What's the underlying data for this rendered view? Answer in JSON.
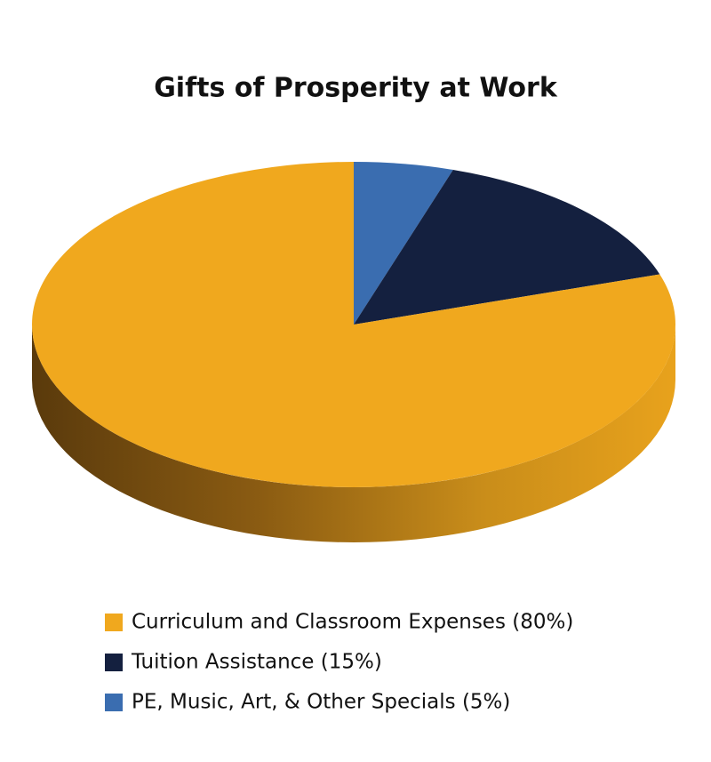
{
  "chart_data": {
    "type": "pie",
    "title": "Gifts of Prosperity at Work",
    "categories": [
      "PE, Music, Art, & Other Specials (5%)",
      "Tuition Assistance (15%)",
      "Curriculum and Classroom Expenses (80%)"
    ],
    "values": [
      5,
      15,
      80
    ],
    "colors": [
      "#3a6db0",
      "#14203f",
      "#f0a81e"
    ]
  }
}
